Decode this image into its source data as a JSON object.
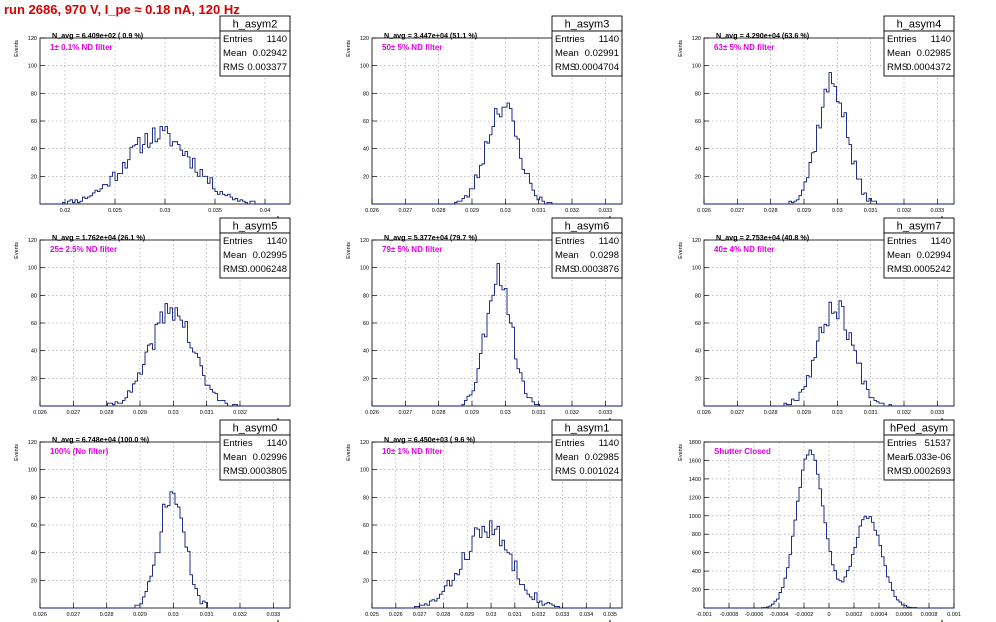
{
  "title": "run 2686,   970 V, I_pe ≈ 0.18 nA, 120 Hz",
  "y_axis_label": "Events",
  "x_axis_label": "A",
  "x_axis_subscript": "LED",
  "stats_labels": [
    "Entries",
    "Mean",
    "RMS"
  ],
  "colors": {
    "histogram": "#0b1a7a",
    "title": "#d40000",
    "annotation": "#e000e0",
    "grid": "#999999",
    "axis": "#000000"
  },
  "chart_data": [
    {
      "type": "histogram",
      "name": "h_asym2",
      "nav": "N_avg = 6.409e+02 ( 0.9 %)",
      "annotation": "1± 0.1% ND filter",
      "stats": {
        "entries": "1140",
        "mean": "0.02942",
        "rms": "0.003377"
      },
      "xlim": [
        0.0175,
        0.0425
      ],
      "ylim": [
        0,
        120
      ],
      "xticks": [
        0.02,
        0.025,
        0.03,
        0.035,
        0.04
      ],
      "xtick_labels": [
        "0.02",
        "0.025",
        "0.03",
        "0.035",
        "0.04"
      ],
      "yticks": [
        20,
        40,
        60,
        80,
        100,
        120
      ],
      "ytick_labels": [
        "20",
        "40",
        "60",
        "80",
        "100",
        "120"
      ],
      "mu": 0.02942,
      "sigma": 0.003377,
      "peak": 50,
      "seed": 11
    },
    {
      "type": "histogram",
      "name": "h_asym3",
      "nav": "N_avg = 3.447e+04 (51.1 %)",
      "annotation": "50± 5% ND filter",
      "stats": {
        "entries": "1140",
        "mean": "0.02991",
        "rms": "0.0004704"
      },
      "xlim": [
        0.026,
        0.0335
      ],
      "ylim": [
        0,
        120
      ],
      "xticks": [
        0.026,
        0.027,
        0.028,
        0.029,
        0.03,
        0.031,
        0.032,
        0.033
      ],
      "xtick_labels": [
        "0.026",
        "0.027",
        "0.028",
        "0.029",
        "0.03",
        "0.031",
        "0.032",
        "0.033"
      ],
      "yticks": [
        20,
        40,
        60,
        80,
        100,
        120
      ],
      "ytick_labels": [
        "20",
        "40",
        "60",
        "80",
        "100",
        "120"
      ],
      "mu": 0.02991,
      "sigma": 0.0004704,
      "peak": 72,
      "seed": 23
    },
    {
      "type": "histogram",
      "name": "h_asym4",
      "nav": "N_avg = 4.290e+04 (63.6 %)",
      "annotation": "63± 5% ND filter",
      "stats": {
        "entries": "1140",
        "mean": "0.02985",
        "rms": "0.0004372"
      },
      "xlim": [
        0.026,
        0.0335
      ],
      "ylim": [
        0,
        120
      ],
      "xticks": [
        0.026,
        0.027,
        0.028,
        0.029,
        0.03,
        0.031,
        0.032,
        0.033
      ],
      "xtick_labels": [
        "0.026",
        "0.027",
        "0.028",
        "0.029",
        "0.03",
        "0.031",
        "0.032",
        "0.033"
      ],
      "yticks": [
        20,
        40,
        60,
        80,
        100,
        120
      ],
      "ytick_labels": [
        "20",
        "40",
        "60",
        "80",
        "100",
        "120"
      ],
      "mu": 0.02985,
      "sigma": 0.0004372,
      "peak": 88,
      "seed": 37
    },
    {
      "type": "histogram",
      "name": "h_asym5",
      "nav": "N_avg = 1.762e+04 (26.1 %)",
      "annotation": "25± 2.5% ND filter",
      "stats": {
        "entries": "1140",
        "mean": "0.02995",
        "rms": "0.0006248"
      },
      "xlim": [
        0.026,
        0.0335
      ],
      "ylim": [
        0,
        120
      ],
      "xticks": [
        0.026,
        0.027,
        0.028,
        0.029,
        0.03,
        0.031,
        0.032
      ],
      "xtick_labels": [
        "0.026",
        "0.027",
        "0.028",
        "0.029",
        "0.03",
        "0.031",
        "0.032"
      ],
      "yticks": [
        20,
        40,
        60,
        80,
        100,
        120
      ],
      "ytick_labels": [
        "20",
        "40",
        "60",
        "80",
        "100",
        "120"
      ],
      "mu": 0.02995,
      "sigma": 0.0006248,
      "peak": 70,
      "seed": 41
    },
    {
      "type": "histogram",
      "name": "h_asym6",
      "nav": "N_avg = 5.377e+04 (79.7 %)",
      "annotation": "79± 5% ND filter",
      "stats": {
        "entries": "1140",
        "mean": "0.0298",
        "rms": "0.0003876"
      },
      "xlim": [
        0.026,
        0.0335
      ],
      "ylim": [
        0,
        120
      ],
      "xticks": [
        0.026,
        0.027,
        0.028,
        0.029,
        0.03,
        0.031,
        0.032,
        0.033
      ],
      "xtick_labels": [
        "0.026",
        "0.027",
        "0.028",
        "0.029",
        "0.03",
        "0.031",
        "0.032",
        "0.033"
      ],
      "yticks": [
        20,
        40,
        60,
        80,
        100,
        120
      ],
      "ytick_labels": [
        "20",
        "40",
        "60",
        "80",
        "100",
        "120"
      ],
      "mu": 0.0298,
      "sigma": 0.0003876,
      "peak": 96,
      "seed": 53
    },
    {
      "type": "histogram",
      "name": "h_asym7",
      "nav": "N_avg = 2.753e+04 (40.8 %)",
      "annotation": "40± 4% ND filter",
      "stats": {
        "entries": "1140",
        "mean": "0.02994",
        "rms": "0.0005242"
      },
      "xlim": [
        0.026,
        0.0335
      ],
      "ylim": [
        0,
        120
      ],
      "xticks": [
        0.026,
        0.027,
        0.028,
        0.029,
        0.03,
        0.031,
        0.032,
        0.033
      ],
      "xtick_labels": [
        "0.026",
        "0.027",
        "0.028",
        "0.029",
        "0.03",
        "0.031",
        "0.032",
        "0.033"
      ],
      "yticks": [
        20,
        40,
        60,
        80,
        100,
        120
      ],
      "ytick_labels": [
        "20",
        "40",
        "60",
        "80",
        "100",
        "120"
      ],
      "mu": 0.02994,
      "sigma": 0.0005242,
      "peak": 72,
      "seed": 67
    },
    {
      "type": "histogram",
      "name": "h_asym0",
      "nav": "N_avg = 6.748e+04 (100.0 %)",
      "annotation": "100% (No filter)",
      "stats": {
        "entries": "1140",
        "mean": "0.02996",
        "rms": "0.0003805"
      },
      "xlim": [
        0.026,
        0.0335
      ],
      "ylim": [
        0,
        120
      ],
      "xticks": [
        0.026,
        0.027,
        0.028,
        0.029,
        0.03,
        0.031,
        0.032,
        0.033
      ],
      "xtick_labels": [
        "0.026",
        "0.027",
        "0.028",
        "0.029",
        "0.03",
        "0.031",
        "0.032",
        "0.033"
      ],
      "yticks": [
        20,
        40,
        60,
        80,
        100,
        120
      ],
      "ytick_labels": [
        "20",
        "40",
        "60",
        "80",
        "100",
        "120"
      ],
      "mu": 0.02996,
      "sigma": 0.0003805,
      "peak": 82,
      "seed": 71
    },
    {
      "type": "histogram",
      "name": "h_asym1",
      "nav": "N_avg = 6.450e+03 ( 9.6 %)",
      "annotation": "10± 1% ND filter",
      "stats": {
        "entries": "1140",
        "mean": "0.02985",
        "rms": "0.001024"
      },
      "xlim": [
        0.025,
        0.0355
      ],
      "ylim": [
        0,
        120
      ],
      "xticks": [
        0.025,
        0.026,
        0.027,
        0.028,
        0.029,
        0.03,
        0.031,
        0.032,
        0.033,
        0.034,
        0.035
      ],
      "xtick_labels": [
        "0.025",
        "0.026",
        "0.027",
        "0.028",
        "0.029",
        "0.03",
        "0.031",
        "0.032",
        "0.033",
        "0.034",
        "0.035"
      ],
      "yticks": [
        20,
        40,
        60,
        80,
        100,
        120
      ],
      "ytick_labels": [
        "20",
        "40",
        "60",
        "80",
        "100",
        "120"
      ],
      "mu": 0.02985,
      "sigma": 0.001024,
      "peak": 57,
      "seed": 83
    },
    {
      "type": "histogram",
      "name": "hPed_asym",
      "annotation": "Shutter Closed",
      "stats": {
        "entries": "51537",
        "mean": "5.033e-06",
        "rms": "0.0002693"
      },
      "xlim": [
        -0.001,
        0.001
      ],
      "ylim": [
        0,
        1800
      ],
      "xticks": [
        -0.001,
        -0.0008,
        -0.0006,
        -0.0004,
        -0.0002,
        0,
        0.0002,
        0.0004,
        0.0006,
        0.0008,
        0.001
      ],
      "xtick_labels": [
        "-0.001",
        "-0.0008",
        "-0.0006",
        "-0.0004",
        "-0.0002",
        "0",
        "0.0002",
        "0.0004",
        "0.0006",
        "0.0008",
        "0.001"
      ],
      "yticks": [
        200,
        400,
        600,
        800,
        1000,
        1200,
        1400,
        1600,
        1800
      ],
      "ytick_labels": [
        "200",
        "400",
        "600",
        "800",
        "1000",
        "1200",
        "1400",
        "1600",
        "1800"
      ],
      "components": [
        {
          "mu": -0.00015,
          "sigma": 0.00011,
          "peak": 1720
        },
        {
          "mu": 0.00031,
          "sigma": 0.00011,
          "peak": 1000
        }
      ],
      "seed": 97
    }
  ]
}
